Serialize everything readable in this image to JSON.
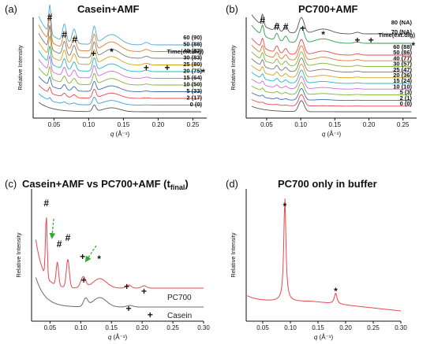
{
  "colors": {
    "axis": "#111111",
    "red": "#e8474e",
    "gray": "#6b6b6b",
    "green_arrow": "#3aa53a"
  },
  "chart_data": [
    {
      "type": "line",
      "panel": "(a)",
      "title": "Casein+AMF",
      "xlabel": "q (Å⁻¹)",
      "ylabel": "Relative Intensity",
      "xlim": [
        0.02,
        0.27
      ],
      "x_ticks": [
        "0.05",
        "0.10",
        "0.15",
        "0.20",
        "0.25"
      ],
      "legend_title": "Time(ext.dig)",
      "series": [
        {
          "name": "60 (90)",
          "color": "#4fa8d8"
        },
        {
          "name": "50 (88)",
          "color": "#e07b2e"
        },
        {
          "name": "40 (87)",
          "color": "#7a7a7a"
        },
        {
          "name": "30 (83)",
          "color": "#d4a31b"
        },
        {
          "name": "25 (80)",
          "color": "#1fb8c9"
        },
        {
          "name": "20 (75)",
          "color": "#cc6fd6"
        },
        {
          "name": "15 (64)",
          "color": "#7fb535"
        },
        {
          "name": "10 (50)",
          "color": "#3d6db0"
        },
        {
          "name": "5 (33)",
          "color": "#e8474e"
        },
        {
          "name": "2 (17)",
          "color": "#33a3d0"
        },
        {
          "name": "0 (0)",
          "color": "#555555"
        }
      ],
      "peak_marks": [
        {
          "symbol": "#",
          "x": 0.044
        },
        {
          "symbol": "#",
          "x": 0.065
        },
        {
          "symbol": "#",
          "x": 0.08
        },
        {
          "symbol": "+",
          "x": 0.107
        },
        {
          "symbol": "*",
          "x": 0.133
        },
        {
          "symbol": "+",
          "x": 0.183
        },
        {
          "symbol": "+",
          "x": 0.213
        },
        {
          "symbol": "*",
          "x": 0.265
        }
      ]
    },
    {
      "type": "line",
      "panel": "(b)",
      "title": "PC700+AMF",
      "xlabel": "q (Å⁻¹)",
      "ylabel": "Relative Intensity",
      "xlim": [
        0.02,
        0.27
      ],
      "x_ticks": [
        "0.05",
        "0.10",
        "0.15",
        "0.20",
        "0.25"
      ],
      "legend_title": "Time(ext.dig)",
      "series": [
        {
          "name": "80 (NA)",
          "color": "#555555"
        },
        {
          "name": "70 (NA)",
          "color": "#2e9e4a"
        },
        {
          "name": "60 (88)",
          "color": "#e8474e"
        },
        {
          "name": "50 (86)",
          "color": "#e07b2e"
        },
        {
          "name": "40 (77)",
          "color": "#7fb535"
        },
        {
          "name": "30 (57)",
          "color": "#7a7a7a"
        },
        {
          "name": "25 (47)",
          "color": "#d4a31b"
        },
        {
          "name": "20 (36)",
          "color": "#1fb8c9"
        },
        {
          "name": "15 (24)",
          "color": "#cc6fd6"
        },
        {
          "name": "10 (10)",
          "color": "#7fb535"
        },
        {
          "name": "5 (3)",
          "color": "#3d6db0"
        },
        {
          "name": "2 (1)",
          "color": "#e8474e"
        },
        {
          "name": "0 (0)",
          "color": "#555555"
        }
      ],
      "peak_marks": [
        {
          "symbol": "#",
          "x": 0.044
        },
        {
          "symbol": "#",
          "x": 0.065
        },
        {
          "symbol": "#",
          "x": 0.078
        },
        {
          "symbol": "+",
          "x": 0.103
        },
        {
          "symbol": "*",
          "x": 0.133
        },
        {
          "symbol": "+",
          "x": 0.183
        },
        {
          "symbol": "+",
          "x": 0.203
        },
        {
          "symbol": "*",
          "x": 0.265
        }
      ]
    },
    {
      "type": "line",
      "panel": "(c)",
      "title": "Casein+AMF vs PC700+AMF (t",
      "title_sub": "final",
      "title_end": ")",
      "xlabel": "q (Å⁻¹)",
      "ylabel": "Relative Intensity",
      "xlim": [
        0.02,
        0.3
      ],
      "x_ticks": [
        "0.05",
        "0.10",
        "0.15",
        "0.20",
        "0.25",
        "0.30"
      ],
      "series": [
        {
          "name": "PC700",
          "color": "#e8474e"
        },
        {
          "name": "Casein",
          "color": "#6b6b6b"
        }
      ],
      "peak_marks": [
        {
          "symbol": "#",
          "x": 0.044
        },
        {
          "symbol": "#",
          "x": 0.065
        },
        {
          "symbol": "#",
          "x": 0.079
        },
        {
          "symbol": "+",
          "x": 0.103
        },
        {
          "symbol": "*",
          "x": 0.13
        },
        {
          "symbol": "+",
          "x": 0.105
        },
        {
          "symbol": "+",
          "x": 0.175
        },
        {
          "symbol": "+",
          "x": 0.203
        },
        {
          "symbol": "+",
          "x": 0.178
        },
        {
          "symbol": "+",
          "x": 0.213
        }
      ]
    },
    {
      "type": "line",
      "panel": "(d)",
      "title": "PC700 only in buffer",
      "xlabel": "q (Å⁻¹)",
      "ylabel": "Relative Intensity",
      "xlim": [
        0.02,
        0.3
      ],
      "x_ticks": [
        "0.05",
        "0.10",
        "0.15",
        "0.20",
        "0.25",
        "0.30"
      ],
      "series": [
        {
          "name": "",
          "color": "#e8474e"
        }
      ],
      "peak_marks": [
        {
          "symbol": "*",
          "x": 0.09
        },
        {
          "symbol": "*",
          "x": 0.182
        }
      ]
    }
  ]
}
